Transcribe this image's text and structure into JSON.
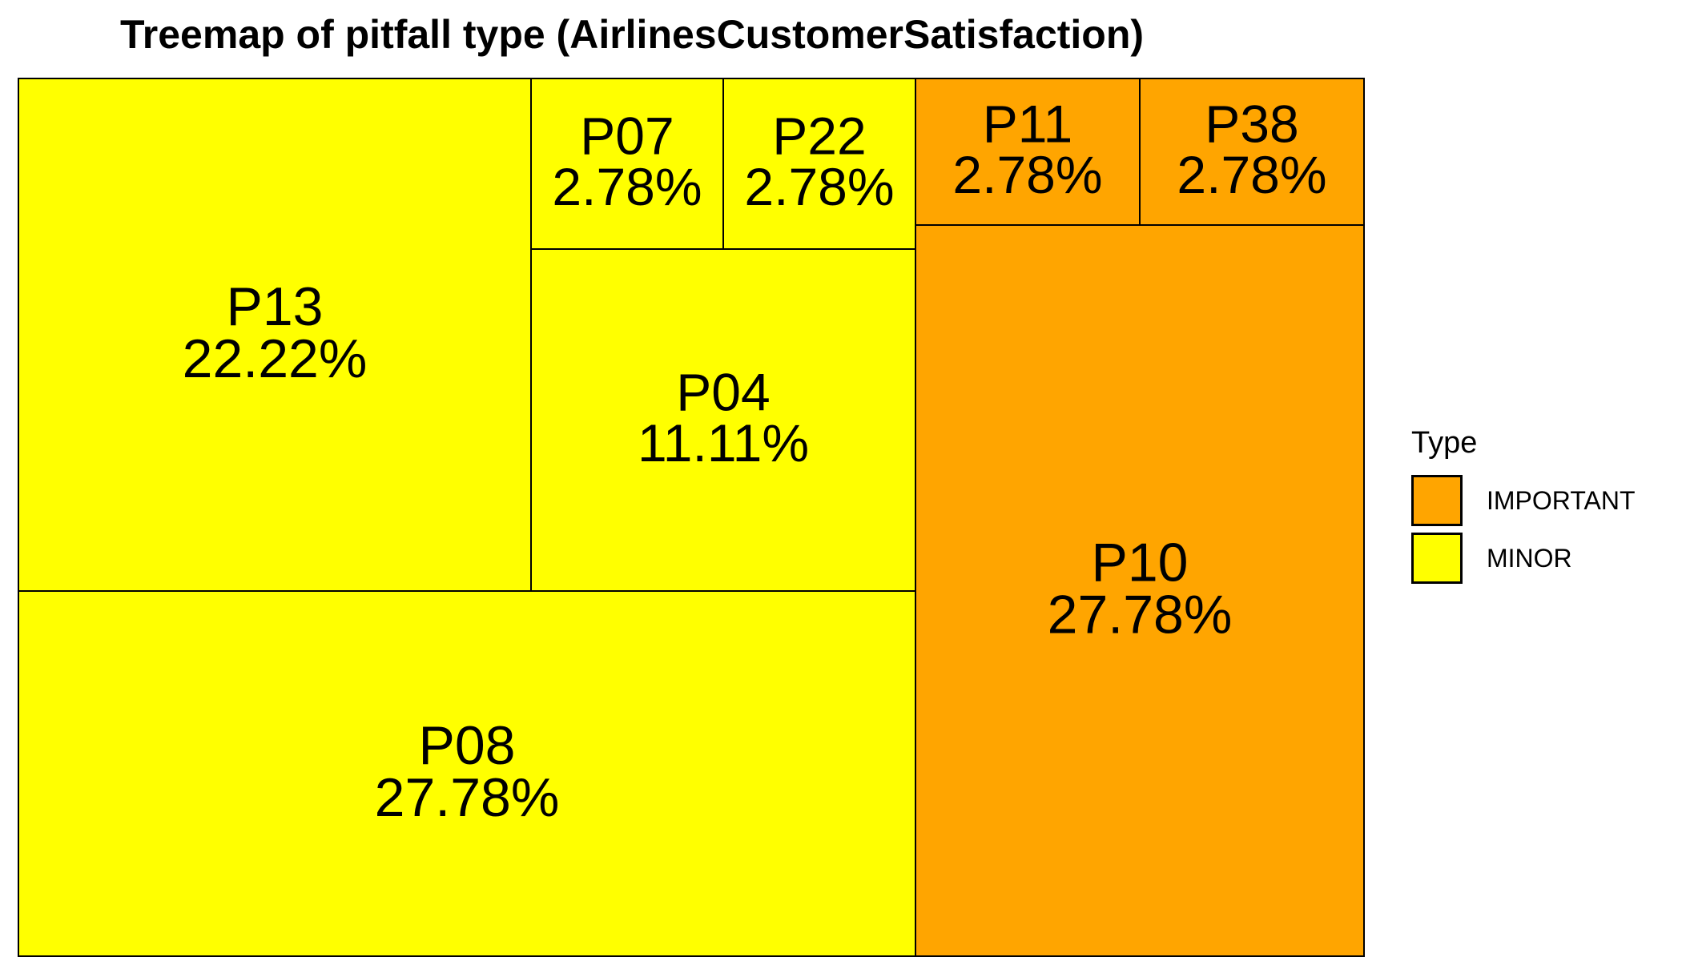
{
  "chart_data": {
    "type": "treemap",
    "title": "Treemap of pitfall type (AirlinesCustomerSatisfaction)",
    "legend": {
      "title": "Type",
      "placement": "right",
      "entries": [
        {
          "label": "IMPORTANT",
          "color": "#FFA500"
        },
        {
          "label": "MINOR",
          "color": "#FFFF00"
        }
      ]
    },
    "groups": [
      {
        "name": "MINOR",
        "color": "#FFFF00",
        "items": [
          {
            "label": "P08",
            "value": 27.78,
            "percent": "27.78%"
          },
          {
            "label": "P13",
            "value": 22.22,
            "percent": "22.22%"
          },
          {
            "label": "P04",
            "value": 11.11,
            "percent": "11.11%"
          },
          {
            "label": "P07",
            "value": 2.78,
            "percent": "2.78%"
          },
          {
            "label": "P22",
            "value": 2.78,
            "percent": "2.78%"
          }
        ]
      },
      {
        "name": "IMPORTANT",
        "color": "#FFA500",
        "items": [
          {
            "label": "P10",
            "value": 27.78,
            "percent": "27.78%"
          },
          {
            "label": "P11",
            "value": 2.78,
            "percent": "2.78%"
          },
          {
            "label": "P38",
            "value": 2.78,
            "percent": "2.78%"
          }
        ]
      }
    ]
  }
}
